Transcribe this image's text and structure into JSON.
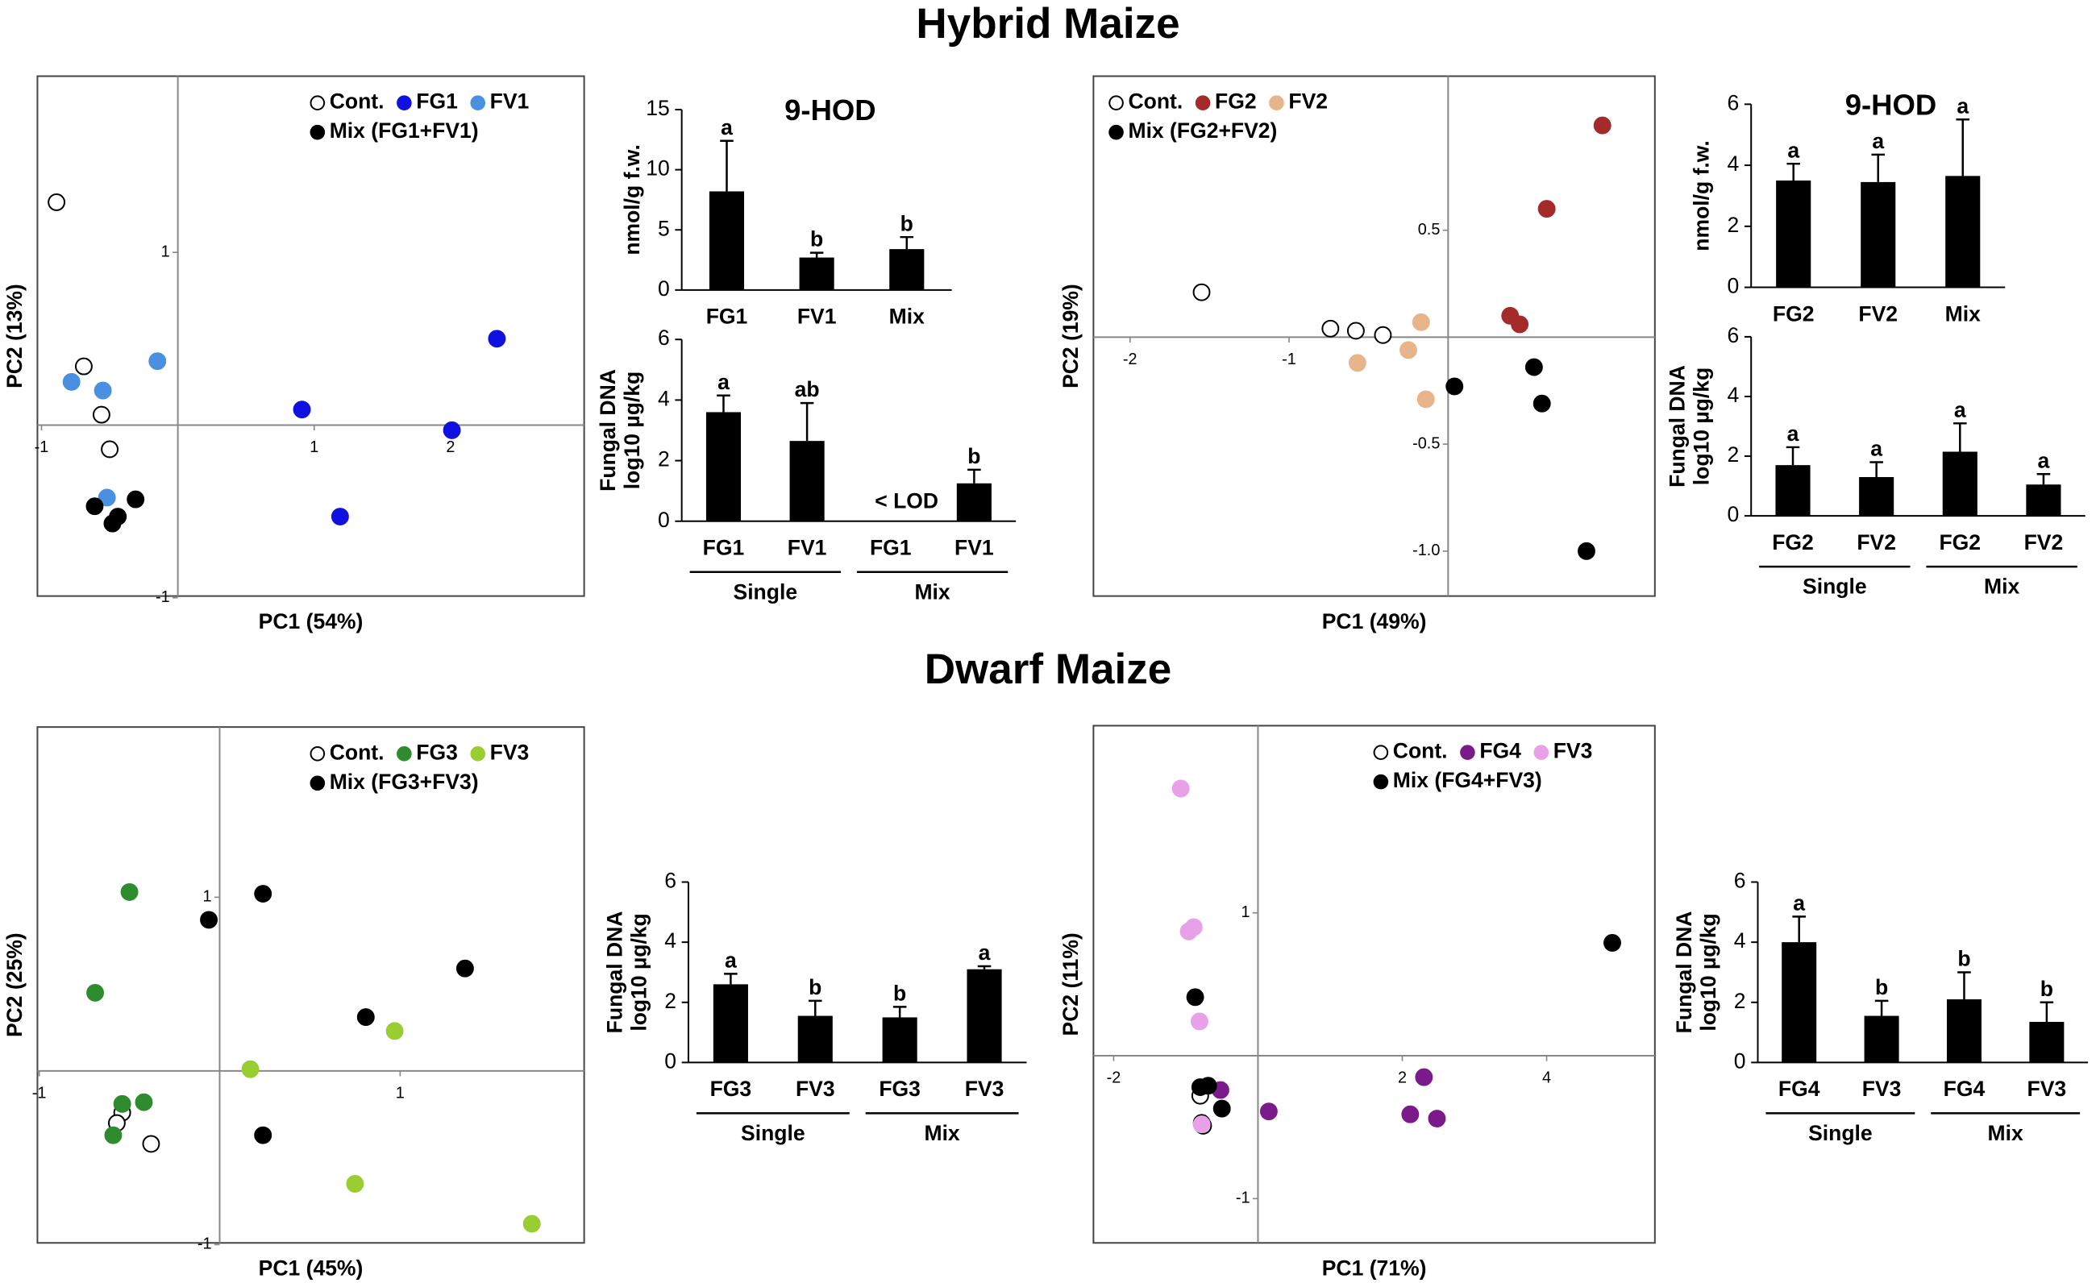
{
  "headings": [
    "Hybrid Maize",
    "Dwarf Maize"
  ],
  "chart_data": [
    {
      "type": "scatter",
      "xlabel": "PC1 (54%)",
      "ylabel": "PC2 (13%)",
      "xlim": [
        -1.03,
        2.98
      ],
      "ylim": [
        -0.99,
        2.02
      ],
      "xticks": [
        -1,
        1,
        2
      ],
      "yticks": [
        -1,
        1
      ],
      "legend_loc": "upper right",
      "series": [
        {
          "name": "Cont.",
          "color": "#ffffff",
          "edgecolor": "#000000",
          "x": [
            -0.89,
            -0.69,
            -0.56,
            -0.5
          ],
          "values": [
            1.29,
            0.34,
            0.06,
            -0.14
          ]
        },
        {
          "name": "FG1",
          "color": "#1010e0",
          "edgecolor": "#1010e0",
          "x": [
            2.34,
            0.91,
            2.01,
            1.19
          ],
          "values": [
            0.5,
            0.09,
            -0.03,
            -0.53
          ]
        },
        {
          "name": "FV1",
          "color": "#4a8fe0",
          "edgecolor": "#4a8fe0",
          "x": [
            -0.15,
            -0.78,
            -0.55,
            -0.52
          ],
          "values": [
            0.37,
            0.25,
            0.2,
            -0.42
          ]
        },
        {
          "name": "Mix (FG1+FV1)",
          "color": "#000000",
          "edgecolor": "#000000",
          "x": [
            -0.61,
            -0.44,
            -0.31,
            -0.48
          ],
          "values": [
            -0.47,
            -0.53,
            -0.43,
            -0.57
          ]
        }
      ]
    },
    {
      "type": "bar",
      "title": "9-HOD",
      "ylabel": [
        "nmol/g f.w."
      ],
      "categories": [
        "FG1",
        "FV1",
        "Mix"
      ],
      "values": [
        8.2,
        2.7,
        3.4
      ],
      "errors": [
        4.2,
        0.4,
        1.0
      ],
      "letters": [
        "a",
        "b",
        "b"
      ],
      "ylim": [
        0,
        15
      ],
      "yticks": [
        0,
        5,
        10,
        15
      ],
      "color": "#000000"
    },
    {
      "type": "bar",
      "ylabel": [
        "Fungal DNA",
        "log10 µg/kg"
      ],
      "categories": [
        "FG1",
        "FV1",
        "FG1",
        "FV1"
      ],
      "groups": [
        "Single",
        "Mix"
      ],
      "values": [
        3.6,
        2.65,
        null,
        1.25
      ],
      "errors": [
        0.55,
        1.25,
        null,
        0.45
      ],
      "letters": [
        "a",
        "ab",
        null,
        "b"
      ],
      "annotation": "< LOD",
      "ylim": [
        0,
        6
      ],
      "yticks": [
        0,
        2,
        4,
        6
      ],
      "color": "#000000"
    },
    {
      "type": "scatter",
      "xlabel": "PC1 (49%)",
      "ylabel": "PC2 (19%)",
      "xlim": [
        -2.23,
        1.3
      ],
      "ylim": [
        -1.21,
        1.22
      ],
      "xticks": [
        -2,
        -1
      ],
      "yticks": [
        0.5,
        -0.5,
        {
          "value": -1,
          "label": "-1.0"
        }
      ],
      "legend_loc": "upper left",
      "series": [
        {
          "name": "Cont.",
          "color": "#ffffff",
          "edgecolor": "#000000",
          "x": [
            -1.55,
            -0.74,
            -0.58,
            -0.41
          ],
          "values": [
            0.21,
            0.04,
            0.03,
            0.01
          ]
        },
        {
          "name": "FG2",
          "color": "#a52a2a",
          "edgecolor": "#a52a2a",
          "x": [
            0.97,
            0.62,
            0.39,
            0.45
          ],
          "values": [
            0.99,
            0.6,
            0.1,
            0.06
          ]
        },
        {
          "name": "FV2",
          "color": "#e8b48a",
          "edgecolor": "#e8b48a",
          "x": [
            -0.17,
            -0.25,
            -0.57,
            -0.14
          ],
          "values": [
            0.07,
            -0.06,
            -0.12,
            -0.29
          ]
        },
        {
          "name": "Mix (FG2+FV2)",
          "color": "#000000",
          "edgecolor": "#000000",
          "x": [
            0.54,
            0.04,
            0.59,
            0.87
          ],
          "values": [
            -0.14,
            -0.23,
            -0.31,
            -1.0
          ]
        }
      ]
    },
    {
      "type": "bar",
      "title": "9-HOD",
      "ylabel": [
        "nmol/g f.w."
      ],
      "categories": [
        "FG2",
        "FV2",
        "Mix"
      ],
      "values": [
        3.5,
        3.45,
        3.65
      ],
      "errors": [
        0.55,
        0.9,
        1.85
      ],
      "letters": [
        "a",
        "a",
        "a"
      ],
      "ylim": [
        0,
        6
      ],
      "yticks": [
        0,
        2,
        4,
        6
      ],
      "color": "#000000"
    },
    {
      "type": "bar",
      "ylabel": [
        "Fungal DNA",
        "log10 µg/kg"
      ],
      "categories": [
        "FG2",
        "FV2",
        "FG2",
        "FV2"
      ],
      "groups": [
        "Single",
        "Mix"
      ],
      "values": [
        1.7,
        1.3,
        2.15,
        1.05
      ],
      "errors": [
        0.6,
        0.5,
        0.95,
        0.35
      ],
      "letters": [
        "a",
        "a",
        "a",
        "a"
      ],
      "ylim": [
        0,
        6
      ],
      "yticks": [
        0,
        2,
        4,
        6
      ],
      "color": "#000000"
    },
    {
      "type": "scatter",
      "xlabel": "PC1 (45%)",
      "ylabel": "PC2 (25%)",
      "xlim": [
        -1.01,
        2.02
      ],
      "ylim": [
        -0.99,
        1.98
      ],
      "xticks": [
        -1,
        1
      ],
      "yticks": [
        -1,
        1
      ],
      "legend_loc": "upper right",
      "series": [
        {
          "name": "Cont.",
          "color": "#ffffff",
          "edgecolor": "#000000",
          "x": [
            -0.54,
            -0.57,
            -0.38
          ],
          "values": [
            -0.24,
            -0.3,
            -0.42
          ]
        },
        {
          "name": "FG3",
          "color": "#2e8b2e",
          "edgecolor": "#2e8b2e",
          "x": [
            -0.5,
            -0.69,
            -0.54,
            -0.42,
            -0.59
          ],
          "values": [
            1.03,
            0.45,
            -0.19,
            -0.18,
            -0.37
          ]
        },
        {
          "name": "FV3",
          "color": "#9acd32",
          "edgecolor": "#9acd32",
          "x": [
            0.97,
            0.17,
            0.75,
            1.73
          ],
          "values": [
            0.23,
            0.01,
            -0.65,
            -0.88
          ]
        },
        {
          "name": "Mix (FG3+FV3)",
          "color": "#000000",
          "edgecolor": "#000000",
          "x": [
            0.24,
            -0.06,
            1.36,
            0.81,
            0.24
          ],
          "values": [
            1.02,
            0.87,
            0.59,
            0.31,
            -0.37
          ]
        }
      ]
    },
    {
      "type": "bar",
      "ylabel": [
        "Fungal DNA",
        "log10 µg/kg"
      ],
      "categories": [
        "FG3",
        "FV3",
        "FG3",
        "FV3"
      ],
      "groups": [
        "Single",
        "Mix"
      ],
      "values": [
        2.6,
        1.55,
        1.5,
        3.1
      ],
      "errors": [
        0.35,
        0.5,
        0.35,
        0.1
      ],
      "letters": [
        "a",
        "b",
        "b",
        "a"
      ],
      "ylim": [
        0,
        6
      ],
      "yticks": [
        0,
        2,
        4,
        6
      ],
      "color": "#000000"
    },
    {
      "type": "scatter",
      "xlabel": "PC1 (71%)",
      "ylabel": "PC2 (11%)",
      "xlim": [
        -2.28,
        5.5
      ],
      "ylim": [
        -1.31,
        2.31
      ],
      "xticks": [
        -2,
        2,
        4
      ],
      "yticks": [
        1,
        -1
      ],
      "legend_loc": "upper right",
      "series": [
        {
          "name": "Cont.",
          "color": "#ffffff",
          "edgecolor": "#000000",
          "x": [
            -0.8,
            -0.78,
            -0.76
          ],
          "values": [
            -0.28,
            -0.47,
            -0.49
          ]
        },
        {
          "name": "FG4",
          "color": "#7b1a8a",
          "edgecolor": "#7b1a8a",
          "x": [
            -0.52,
            0.15,
            2.3,
            2.11,
            2.48
          ],
          "values": [
            -0.24,
            -0.39,
            -0.15,
            -0.41,
            -0.44
          ]
        },
        {
          "name": "FV3",
          "color": "#e8a0e8",
          "edgecolor": "#e8a0e8",
          "x": [
            -1.07,
            -0.89,
            -0.96,
            -0.81,
            -0.78
          ],
          "values": [
            1.87,
            0.9,
            0.87,
            0.24,
            -0.48
          ]
        },
        {
          "name": "Mix (FG4+FV3)",
          "color": "#000000",
          "edgecolor": "#000000",
          "x": [
            4.91,
            -0.87,
            -0.8,
            -0.69,
            -0.5
          ],
          "values": [
            0.79,
            0.41,
            -0.22,
            -0.21,
            -0.37
          ]
        }
      ]
    },
    {
      "type": "bar",
      "ylabel": [
        "Fungal DNA",
        "log10 µg/kg"
      ],
      "categories": [
        "FG4",
        "FV3",
        "FG4",
        "FV3"
      ],
      "groups": [
        "Single",
        "Mix"
      ],
      "values": [
        4.0,
        1.55,
        2.1,
        1.35
      ],
      "errors": [
        0.85,
        0.5,
        0.9,
        0.65
      ],
      "letters": [
        "a",
        "b",
        "b",
        "b"
      ],
      "ylim": [
        0,
        6
      ],
      "yticks": [
        0,
        2,
        4,
        6
      ],
      "color": "#000000"
    }
  ]
}
